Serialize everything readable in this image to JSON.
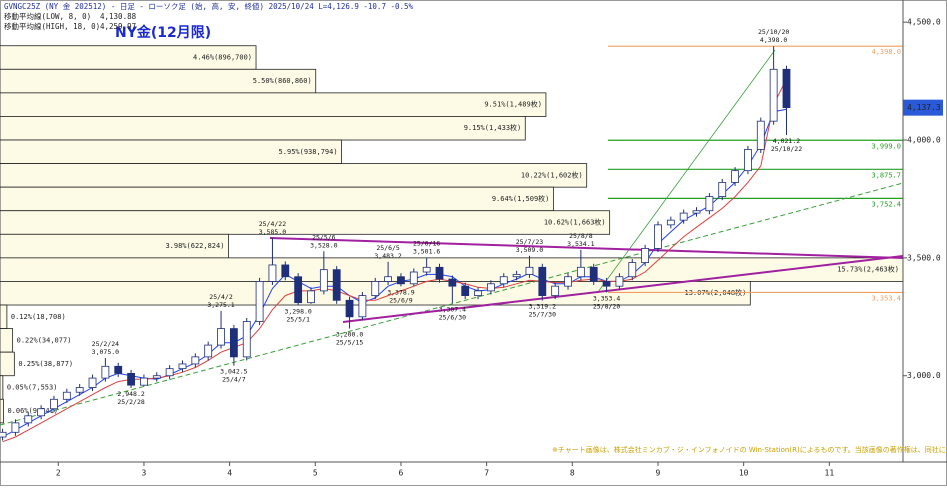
{
  "chart_data": {
    "type": "candlestick",
    "title": "NY金(12月限)",
    "header": "GVNGC25Z (NY 金 202512) - 日足 - ローソク足 (始, 高, 安, 終値)  2025/10/24 L=4,126.9 -10.7 -0.5%",
    "note": "※チャート画像は、株式会社ミンカブ・ジ・インフォノイドの Win-Station(R)によるものです。当該画像の著作権は、同社に帰属します。",
    "xlim": [
      1.32,
      11.86
    ],
    "xticks": [
      2,
      3,
      4,
      5,
      6,
      7,
      8,
      9,
      10,
      11
    ],
    "ylim": [
      2634,
      4594
    ],
    "yticks": [
      {
        "value": 3000,
        "label": "3,000.0"
      },
      {
        "value": 3500,
        "label": "3,500.0"
      },
      {
        "value": 4000,
        "label": "4,000.0"
      },
      {
        "value": 4500,
        "label": "4,500.0"
      }
    ],
    "up_color": "#ffffff",
    "down_color": "#1f2f7a",
    "edge_color": "#1f2f7a",
    "x": [
      1.35,
      1.5,
      1.65,
      1.8,
      1.95,
      2.1,
      2.25,
      2.4,
      2.55,
      2.7,
      2.85,
      3.0,
      3.15,
      3.3,
      3.45,
      3.6,
      3.75,
      3.9,
      4.05,
      4.2,
      4.35,
      4.5,
      4.65,
      4.8,
      4.95,
      5.1,
      5.25,
      5.4,
      5.55,
      5.7,
      5.85,
      6.0,
      6.15,
      6.3,
      6.45,
      6.6,
      6.75,
      6.9,
      7.05,
      7.2,
      7.35,
      7.5,
      7.65,
      7.8,
      7.95,
      8.1,
      8.25,
      8.4,
      8.55,
      8.7,
      8.85,
      9.0,
      9.15,
      9.3,
      9.45,
      9.6,
      9.75,
      9.9,
      10.05,
      10.2,
      10.35,
      10.5
    ],
    "open": [
      2740,
      2760,
      2800,
      2830,
      2860,
      2900,
      2930,
      2950,
      2990,
      3040,
      3010,
      2960,
      2990,
      3000,
      3030,
      3050,
      3080,
      3130,
      3200,
      3080,
      3230,
      3400,
      3470,
      3420,
      3310,
      3360,
      3450,
      3320,
      3250,
      3340,
      3400,
      3420,
      3390,
      3440,
      3460,
      3410,
      3380,
      3340,
      3360,
      3390,
      3420,
      3430,
      3460,
      3340,
      3380,
      3420,
      3460,
      3400,
      3380,
      3420,
      3480,
      3540,
      3640,
      3660,
      3690,
      3700,
      3760,
      3820,
      3870,
      3960,
      4080,
      4300
    ],
    "high": [
      2775,
      2815,
      2845,
      2875,
      2915,
      2945,
      2965,
      3005,
      3075,
      3055,
      3025,
      3005,
      3015,
      3045,
      3065,
      3095,
      3145,
      3275.1,
      3215,
      3245,
      3415,
      3585,
      3485,
      3435,
      3375,
      3528,
      3465,
      3335,
      3355,
      3415,
      3483.2,
      3435,
      3455,
      3501.6,
      3475,
      3425,
      3395,
      3375,
      3405,
      3435,
      3445,
      3509,
      3475,
      3395,
      3435,
      3534.1,
      3475,
      3415,
      3435,
      3495,
      3555,
      3655,
      3675,
      3705,
      3715,
      3775,
      3835,
      3885,
      3975,
      4095,
      4398,
      4315
    ],
    "low": [
      2725,
      2745,
      2785,
      2815,
      2845,
      2885,
      2915,
      2935,
      2975,
      2995,
      2948.2,
      2955,
      2975,
      2985,
      3015,
      3035,
      3065,
      3115,
      3042.5,
      3065,
      3215,
      3385,
      3405,
      3298,
      3305,
      3345,
      3305,
      3200,
      3235,
      3325,
      3385,
      3378.9,
      3380,
      3425,
      3395,
      3307.4,
      3325,
      3325,
      3345,
      3375,
      3405,
      3415,
      3319.2,
      3325,
      3365,
      3405,
      3385,
      3353.4,
      3365,
      3405,
      3465,
      3525,
      3625,
      3645,
      3675,
      3685,
      3745,
      3805,
      3855,
      3945,
      4065,
      4021.2
    ],
    "close": [
      2760,
      2800,
      2830,
      2860,
      2900,
      2930,
      2950,
      2990,
      3040,
      3010,
      2960,
      2990,
      3000,
      3030,
      3050,
      3080,
      3130,
      3200,
      3080,
      3230,
      3400,
      3470,
      3420,
      3310,
      3360,
      3450,
      3320,
      3250,
      3340,
      3400,
      3420,
      3390,
      3440,
      3460,
      3410,
      3380,
      3340,
      3360,
      3390,
      3420,
      3430,
      3460,
      3340,
      3380,
      3420,
      3460,
      3400,
      3380,
      3420,
      3480,
      3540,
      3640,
      3660,
      3690,
      3700,
      3760,
      3820,
      3870,
      3960,
      4080,
      4300,
      4137.3
    ],
    "last_price": {
      "value": 4137.3,
      "label": "4,137.3"
    },
    "ma": [
      {
        "name": "移動平均線(LOW, 8, 0)",
        "last_label": "4,130.88",
        "color": "#2040ff",
        "values": [
          2740,
          2770,
          2800,
          2830,
          2860,
          2890,
          2920,
          2950,
          2990,
          3010,
          3000,
          2990,
          2985,
          3005,
          3030,
          3055,
          3090,
          3140,
          3140,
          3170,
          3260,
          3370,
          3430,
          3400,
          3370,
          3380,
          3380,
          3340,
          3310,
          3330,
          3380,
          3400,
          3410,
          3430,
          3430,
          3420,
          3380,
          3360,
          3365,
          3390,
          3410,
          3435,
          3410,
          3390,
          3390,
          3420,
          3420,
          3400,
          3400,
          3430,
          3480,
          3560,
          3610,
          3660,
          3690,
          3720,
          3770,
          3820,
          3890,
          3980,
          4120,
          4130.88
        ]
      },
      {
        "name": "移動平均線(HIGH, 18, 0)",
        "last_label": "4,259.97",
        "color": "#e04040",
        "values": [
          2720,
          2740,
          2770,
          2800,
          2830,
          2860,
          2890,
          2920,
          2950,
          2975,
          2985,
          2985,
          2990,
          3000,
          3015,
          3035,
          3065,
          3100,
          3120,
          3140,
          3200,
          3280,
          3340,
          3360,
          3360,
          3370,
          3360,
          3340,
          3320,
          3320,
          3340,
          3360,
          3380,
          3400,
          3410,
          3400,
          3390,
          3375,
          3370,
          3375,
          3390,
          3405,
          3400,
          3395,
          3395,
          3405,
          3410,
          3400,
          3400,
          3410,
          3440,
          3490,
          3540,
          3590,
          3630,
          3670,
          3710,
          3760,
          3820,
          3890,
          4150,
          4259.97
        ]
      }
    ],
    "profile": {
      "color": "#fdfbe6",
      "lows": [
        4300,
        4200,
        4100,
        4000,
        3900,
        3800,
        3700,
        3600,
        3500,
        3400,
        3300,
        3200,
        3100,
        3000,
        2900,
        2800
      ],
      "highs": [
        4400,
        4300,
        4200,
        4100,
        4000,
        3900,
        3800,
        3700,
        3600,
        3500,
        3400,
        3300,
        3200,
        3100,
        3000,
        2900
      ],
      "values": [
        4.46,
        5.5,
        9.51,
        9.15,
        5.95,
        10.22,
        9.64,
        10.62,
        3.98,
        15.73,
        13.07,
        0.12,
        0.22,
        0.25,
        0.05,
        0.06
      ],
      "value_labels": [
        "4.46%(896,700)",
        "5.50%(860,860)",
        "9.51%(1,489枚)",
        "9.15%(1,433枚)",
        "5.95%(938,794)",
        "10.22%(1,602枚)",
        "9.64%(1,509枚)",
        "10.62%(1,663枚)",
        "3.98%(622,824)",
        "15.73%(2,463枚)",
        "13.07%(2,048枚)",
        "0.12%(18,708)",
        "0.22%(34,077)",
        "0.25%(38,877)",
        "0.05%(7,553)",
        "0.06%(9,341)"
      ]
    },
    "levels": [
      {
        "value": 4398.0,
        "label": "4,398.0",
        "color": "#f0a060"
      },
      {
        "value": 3999.0,
        "label": "3,999.0",
        "color": "#22a022"
      },
      {
        "value": 3875.7,
        "label": "3,875.7",
        "color": "#22a022"
      },
      {
        "value": 3752.4,
        "label": "3,752.4",
        "color": "#22a022"
      },
      {
        "value": 3353.4,
        "label": "3,353.4",
        "color": "#f0a060"
      }
    ],
    "annotations": [
      {
        "date": "25/2/24",
        "x": 2.55,
        "value": 3075.0,
        "label": "3,075.0"
      },
      {
        "date": "25/2/28",
        "x": 2.85,
        "value": 2948.2,
        "label": "2,948.2"
      },
      {
        "date": "25/4/2",
        "x": 3.9,
        "value": 3275.1,
        "label": "3,275.1"
      },
      {
        "date": "25/4/7",
        "x": 4.05,
        "value": 3042.5,
        "label": "3,042.5"
      },
      {
        "date": "25/4/22",
        "x": 4.5,
        "value": 3585.0,
        "label": "3,585.0"
      },
      {
        "date": "25/5/1",
        "x": 4.8,
        "value": 3298.0,
        "label": "3,298.0"
      },
      {
        "date": "25/5/6",
        "x": 5.1,
        "value": 3528.0,
        "label": "3,528.0"
      },
      {
        "date": "25/5/15",
        "x": 5.4,
        "value": 3200.0,
        "label": "3,200.0"
      },
      {
        "date": "25/6/5",
        "x": 5.85,
        "value": 3483.2,
        "label": "3,483.2"
      },
      {
        "date": "25/6/9",
        "x": 6.0,
        "value": 3378.9,
        "label": "3,378.9"
      },
      {
        "date": "25/6/16",
        "x": 6.3,
        "value": 3501.6,
        "label": "3,501.6"
      },
      {
        "date": "25/6/30",
        "x": 6.6,
        "value": 3307.4,
        "label": "3,307.4"
      },
      {
        "date": "25/7/23",
        "x": 7.5,
        "value": 3509.0,
        "label": "3,509.0"
      },
      {
        "date": "25/7/30",
        "x": 7.65,
        "value": 3319.2,
        "label": "3,319.2"
      },
      {
        "date": "25/8/8",
        "x": 8.1,
        "value": 3534.1,
        "label": "3,534.1"
      },
      {
        "date": "25/8/20",
        "x": 8.4,
        "value": 3353.4,
        "label": "3,353.4"
      },
      {
        "date": "25/10/20",
        "x": 10.35,
        "value": 4398.0,
        "label": "4,398.0"
      },
      {
        "date": "25/10/22",
        "x": 10.5,
        "value": 4021.2,
        "label": "4,021.2"
      }
    ]
  }
}
